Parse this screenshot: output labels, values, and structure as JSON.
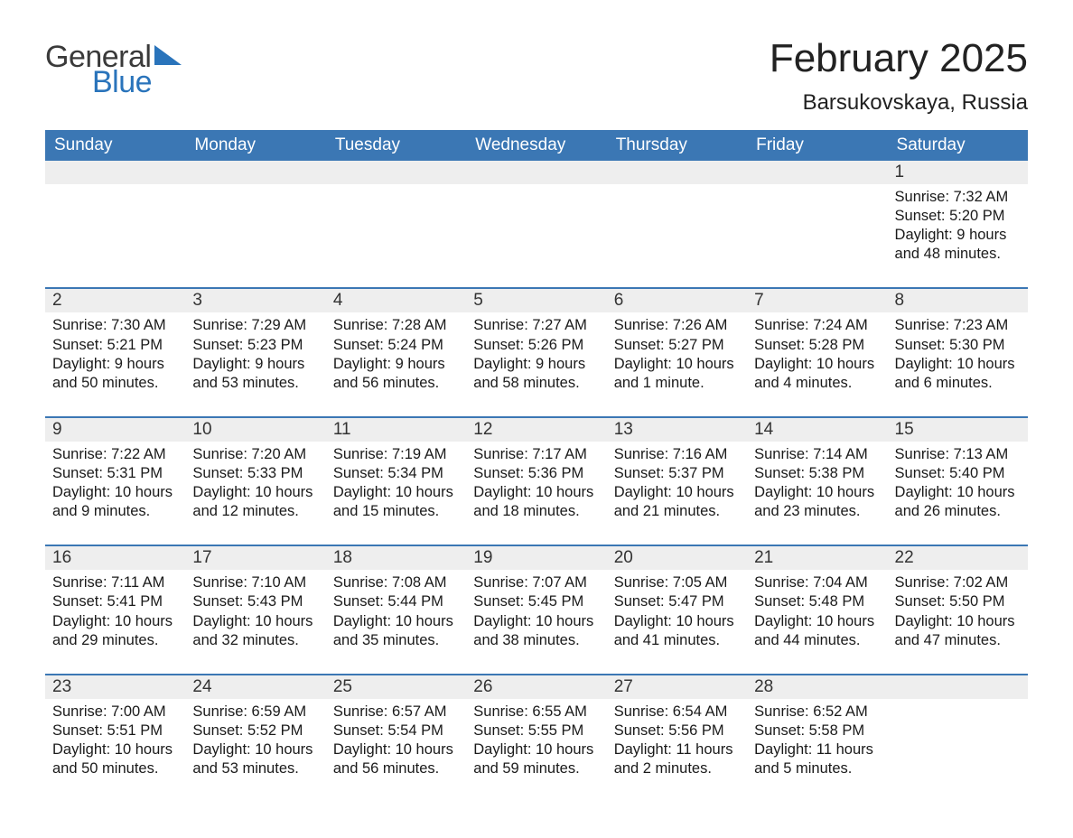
{
  "logo": {
    "word1": "General",
    "word2": "Blue",
    "accent_color": "#2a74bb",
    "text_color": "#3a3a3a"
  },
  "title": "February 2025",
  "location": "Barsukovskaya, Russia",
  "header_bg": "#3b77b4",
  "header_fg": "#ffffff",
  "daynum_bg": "#eeeeee",
  "row_border": "#3b77b4",
  "weekdays": [
    "Sunday",
    "Monday",
    "Tuesday",
    "Wednesday",
    "Thursday",
    "Friday",
    "Saturday"
  ],
  "weeks": [
    [
      null,
      null,
      null,
      null,
      null,
      null,
      {
        "n": "1",
        "sunrise": "7:32 AM",
        "sunset": "5:20 PM",
        "daylight": "9 hours and 48 minutes."
      }
    ],
    [
      {
        "n": "2",
        "sunrise": "7:30 AM",
        "sunset": "5:21 PM",
        "daylight": "9 hours and 50 minutes."
      },
      {
        "n": "3",
        "sunrise": "7:29 AM",
        "sunset": "5:23 PM",
        "daylight": "9 hours and 53 minutes."
      },
      {
        "n": "4",
        "sunrise": "7:28 AM",
        "sunset": "5:24 PM",
        "daylight": "9 hours and 56 minutes."
      },
      {
        "n": "5",
        "sunrise": "7:27 AM",
        "sunset": "5:26 PM",
        "daylight": "9 hours and 58 minutes."
      },
      {
        "n": "6",
        "sunrise": "7:26 AM",
        "sunset": "5:27 PM",
        "daylight": "10 hours and 1 minute."
      },
      {
        "n": "7",
        "sunrise": "7:24 AM",
        "sunset": "5:28 PM",
        "daylight": "10 hours and 4 minutes."
      },
      {
        "n": "8",
        "sunrise": "7:23 AM",
        "sunset": "5:30 PM",
        "daylight": "10 hours and 6 minutes."
      }
    ],
    [
      {
        "n": "9",
        "sunrise": "7:22 AM",
        "sunset": "5:31 PM",
        "daylight": "10 hours and 9 minutes."
      },
      {
        "n": "10",
        "sunrise": "7:20 AM",
        "sunset": "5:33 PM",
        "daylight": "10 hours and 12 minutes."
      },
      {
        "n": "11",
        "sunrise": "7:19 AM",
        "sunset": "5:34 PM",
        "daylight": "10 hours and 15 minutes."
      },
      {
        "n": "12",
        "sunrise": "7:17 AM",
        "sunset": "5:36 PM",
        "daylight": "10 hours and 18 minutes."
      },
      {
        "n": "13",
        "sunrise": "7:16 AM",
        "sunset": "5:37 PM",
        "daylight": "10 hours and 21 minutes."
      },
      {
        "n": "14",
        "sunrise": "7:14 AM",
        "sunset": "5:38 PM",
        "daylight": "10 hours and 23 minutes."
      },
      {
        "n": "15",
        "sunrise": "7:13 AM",
        "sunset": "5:40 PM",
        "daylight": "10 hours and 26 minutes."
      }
    ],
    [
      {
        "n": "16",
        "sunrise": "7:11 AM",
        "sunset": "5:41 PM",
        "daylight": "10 hours and 29 minutes."
      },
      {
        "n": "17",
        "sunrise": "7:10 AM",
        "sunset": "5:43 PM",
        "daylight": "10 hours and 32 minutes."
      },
      {
        "n": "18",
        "sunrise": "7:08 AM",
        "sunset": "5:44 PM",
        "daylight": "10 hours and 35 minutes."
      },
      {
        "n": "19",
        "sunrise": "7:07 AM",
        "sunset": "5:45 PM",
        "daylight": "10 hours and 38 minutes."
      },
      {
        "n": "20",
        "sunrise": "7:05 AM",
        "sunset": "5:47 PM",
        "daylight": "10 hours and 41 minutes."
      },
      {
        "n": "21",
        "sunrise": "7:04 AM",
        "sunset": "5:48 PM",
        "daylight": "10 hours and 44 minutes."
      },
      {
        "n": "22",
        "sunrise": "7:02 AM",
        "sunset": "5:50 PM",
        "daylight": "10 hours and 47 minutes."
      }
    ],
    [
      {
        "n": "23",
        "sunrise": "7:00 AM",
        "sunset": "5:51 PM",
        "daylight": "10 hours and 50 minutes."
      },
      {
        "n": "24",
        "sunrise": "6:59 AM",
        "sunset": "5:52 PM",
        "daylight": "10 hours and 53 minutes."
      },
      {
        "n": "25",
        "sunrise": "6:57 AM",
        "sunset": "5:54 PM",
        "daylight": "10 hours and 56 minutes."
      },
      {
        "n": "26",
        "sunrise": "6:55 AM",
        "sunset": "5:55 PM",
        "daylight": "10 hours and 59 minutes."
      },
      {
        "n": "27",
        "sunrise": "6:54 AM",
        "sunset": "5:56 PM",
        "daylight": "11 hours and 2 minutes."
      },
      {
        "n": "28",
        "sunrise": "6:52 AM",
        "sunset": "5:58 PM",
        "daylight": "11 hours and 5 minutes."
      },
      null
    ]
  ],
  "labels": {
    "sunrise": "Sunrise: ",
    "sunset": "Sunset: ",
    "daylight": "Daylight: "
  }
}
